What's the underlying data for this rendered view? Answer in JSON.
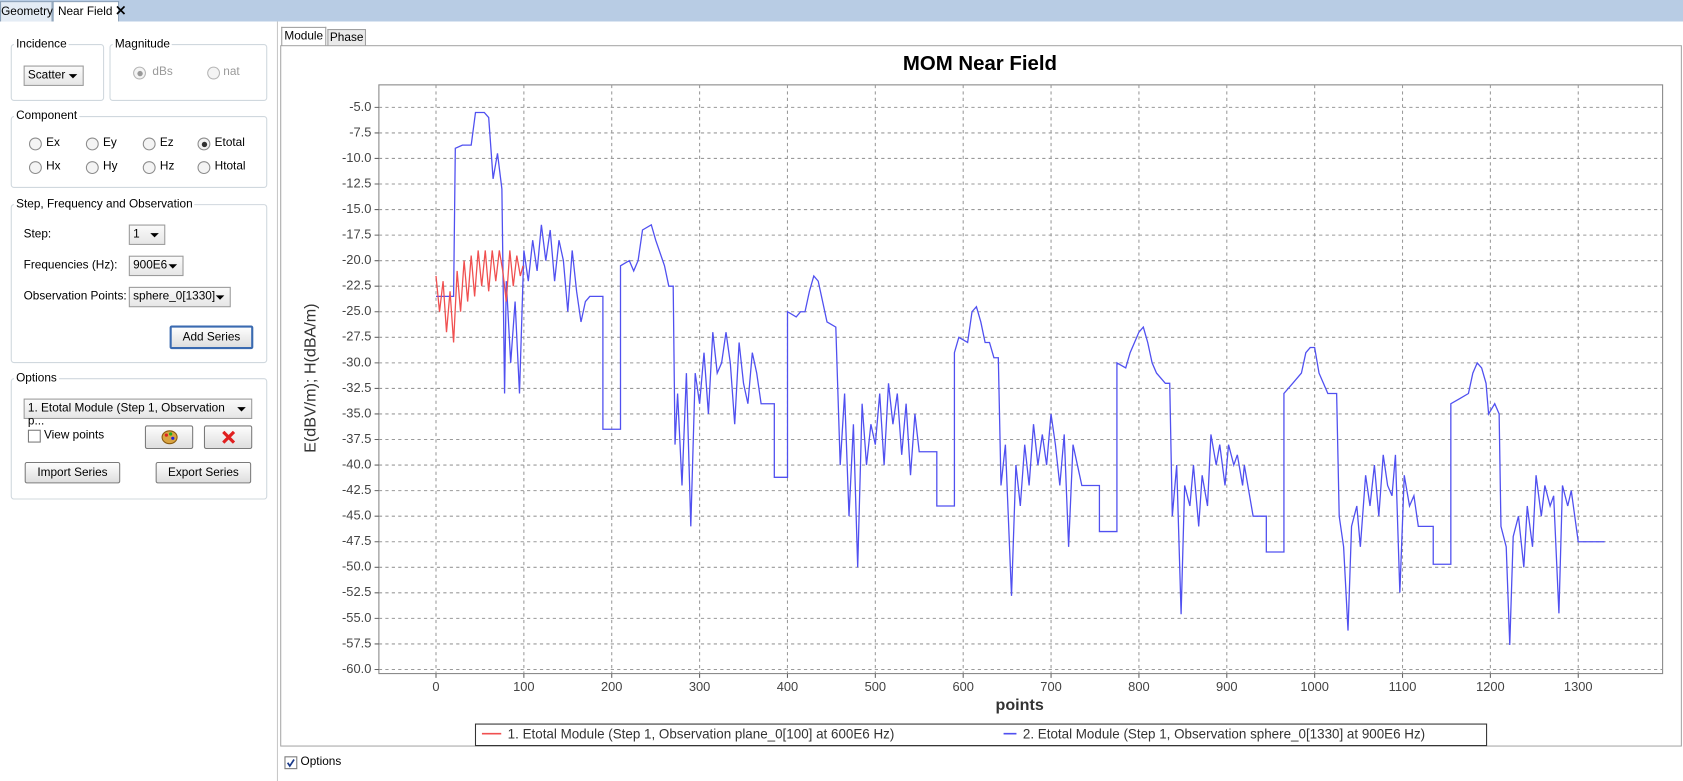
{
  "tabs": [
    "Geometry",
    "Near Field"
  ],
  "incidence": {
    "title": "Incidence",
    "value": "Scatter"
  },
  "magnitude": {
    "title": "Magnitude",
    "options": [
      "dBs",
      "nat"
    ]
  },
  "component": {
    "title": "Component",
    "options": [
      "Ex",
      "Ey",
      "Ez",
      "Etotal",
      "Hx",
      "Hy",
      "Hz",
      "Htotal"
    ]
  },
  "step_group": {
    "title": "Step, Frequency and Observation",
    "step_label": "Step:",
    "step_value": "1",
    "freq_label": "Frequencies (Hz):",
    "freq_value": "900E6",
    "obs_label": "Observation Points:",
    "obs_value": "sphere_0[1330]",
    "add_button": "Add Series"
  },
  "options": {
    "title": "Options",
    "series_select": "1. Etotal Module (Step 1, Observation p...",
    "view_points": "View points",
    "import_button": "Import Series",
    "export_button": "Export Series"
  },
  "chart_tabs": [
    "Module",
    "Phase"
  ],
  "bottom_checkbox": "Options",
  "chart_data": {
    "type": "line",
    "title": "MOM Near Field",
    "x_label": "points",
    "y_label": "E(dBV/m); H(dBA/m)",
    "xlim": [
      -65,
      1396
    ],
    "ylim": [
      -60.4,
      -2.8
    ],
    "xticks": [
      0,
      100,
      200,
      300,
      400,
      500,
      600,
      700,
      800,
      900,
      1000,
      1100,
      1200,
      1300
    ],
    "yticks": [
      {
        "value": -5,
        "label": "-5.0"
      },
      -7.5,
      {
        "value": -10,
        "label": "-10.0"
      },
      -12.5,
      {
        "value": -15,
        "label": "-15.0"
      },
      -17.5,
      {
        "value": -20,
        "label": "-20.0"
      },
      -22.5,
      {
        "value": -25,
        "label": "-25.0"
      },
      -27.5,
      {
        "value": -30,
        "label": "-30.0"
      },
      -32.5,
      {
        "value": -35,
        "label": "-35.0"
      },
      -37.5,
      {
        "value": -40,
        "label": "-40.0"
      },
      -42.5,
      {
        "value": -45,
        "label": "-45.0"
      },
      -47.5,
      {
        "value": -50,
        "label": "-50.0"
      },
      -52.5,
      {
        "value": -55,
        "label": "-55.0"
      },
      -57.5,
      {
        "value": -60,
        "label": "-60.0"
      }
    ],
    "grid": true,
    "legend": "bottom",
    "series": [
      {
        "name": "1. Etotal Module (Step 1, Observation plane_0[100] at 600E6 Hz)",
        "color": "#f05050",
        "x": [
          0,
          4,
          8,
          12,
          16,
          20,
          24,
          28,
          32,
          36,
          40,
          44,
          48,
          52,
          56,
          60,
          64,
          68,
          72,
          76,
          80,
          84,
          88,
          92,
          96,
          99
        ],
        "values": [
          -21.5,
          -25,
          -22,
          -27,
          -23,
          -28,
          -21,
          -25,
          -20,
          -24,
          -19.5,
          -23.5,
          -19,
          -22.5,
          -19,
          -23,
          -19,
          -22,
          -19,
          -21,
          -24,
          -19,
          -22.5,
          -19.5,
          -21.5,
          -20.5
        ]
      },
      {
        "name": "2. Etotal Module (Step 1, Observation sphere_0[1330] at 900E6 Hz)",
        "color": "#5050f0",
        "x": [
          0,
          20,
          22,
          30,
          40,
          45,
          55,
          60,
          65,
          70,
          75,
          78,
          80,
          85,
          90,
          95,
          100,
          105,
          110,
          115,
          120,
          125,
          130,
          135,
          140,
          145,
          150,
          155,
          160,
          165,
          170,
          175,
          190,
          190,
          210,
          210,
          220,
          225,
          230,
          235,
          245,
          250,
          260,
          265,
          270,
          272,
          275,
          280,
          285,
          290,
          295,
          300,
          305,
          310,
          315,
          320,
          325,
          330,
          335,
          340,
          345,
          350,
          355,
          360,
          365,
          370,
          385,
          385,
          400,
          400,
          410,
          415,
          420,
          425,
          430,
          435,
          440,
          445,
          455,
          460,
          465,
          470,
          475,
          480,
          485,
          490,
          495,
          500,
          505,
          510,
          515,
          520,
          525,
          530,
          535,
          540,
          545,
          550,
          570,
          570,
          590,
          590,
          595,
          605,
          610,
          615,
          620,
          625,
          630,
          635,
          640,
          643,
          648,
          655,
          660,
          665,
          670,
          675,
          680,
          685,
          690,
          695,
          700,
          705,
          710,
          715,
          720,
          725,
          730,
          735,
          755,
          755,
          775,
          775,
          785,
          790,
          795,
          800,
          805,
          810,
          815,
          820,
          830,
          835,
          838,
          843,
          848,
          852,
          858,
          862,
          868,
          872,
          878,
          882,
          888,
          892,
          898,
          902,
          908,
          912,
          918,
          920,
          930,
          945,
          945,
          965,
          965,
          975,
          985,
          990,
          995,
          1000,
          1005,
          1010,
          1015,
          1025,
          1028,
          1033,
          1038,
          1042,
          1048,
          1052,
          1058,
          1063,
          1068,
          1073,
          1078,
          1083,
          1088,
          1092,
          1097,
          1102,
          1108,
          1113,
          1118,
          1135,
          1135,
          1155,
          1155,
          1165,
          1175,
          1180,
          1185,
          1190,
          1195,
          1198,
          1205,
          1210,
          1212,
          1218,
          1222,
          1226,
          1232,
          1238,
          1242,
          1248,
          1252,
          1258,
          1262,
          1268,
          1272,
          1278,
          1282,
          1288,
          1292,
          1300,
          1330
        ],
        "values": [
          -23.5,
          -23.5,
          -9,
          -8.7,
          -8.7,
          -5.5,
          -5.5,
          -6,
          -12,
          -9.5,
          -13,
          -33,
          -22,
          -30,
          -24,
          -33,
          -19,
          -22,
          -18,
          -21,
          -16.5,
          -20,
          -17,
          -22,
          -18,
          -20,
          -25,
          -19,
          -23,
          -26,
          -24,
          -23.5,
          -23.5,
          -36.5,
          -36.5,
          -20.5,
          -20,
          -21,
          -20,
          -17,
          -16.5,
          -18,
          -20.5,
          -22.5,
          -22.5,
          -38,
          -33,
          -42,
          -31,
          -46,
          -31,
          -34,
          -29,
          -35,
          -27,
          -31,
          -30,
          -27,
          -30,
          -36,
          -28,
          -32,
          -34,
          -29,
          -31,
          -34,
          -34,
          -41.2,
          -41.2,
          -25,
          -25.5,
          -25,
          -25,
          -23,
          -21.5,
          -22,
          -24,
          -26,
          -26.5,
          -40,
          -33,
          -45,
          -36,
          -50,
          -34,
          -40,
          -36,
          -38,
          -33,
          -40,
          -32,
          -36,
          -33,
          -39,
          -34,
          -41,
          -35,
          -38.7,
          -38.7,
          -44,
          -44,
          -29,
          -27.5,
          -28,
          -25,
          -24.5,
          -26,
          -28,
          -28,
          -29.5,
          -29.5,
          -42,
          -38,
          -52.8,
          -40,
          -44,
          -38,
          -42,
          -36,
          -40,
          -37,
          -40,
          -35,
          -38,
          -42,
          -37,
          -48,
          -38,
          -40,
          -42,
          -42,
          -46.5,
          -46.5,
          -30,
          -30.5,
          -29,
          -28,
          -27,
          -26.5,
          -28,
          -30,
          -31,
          -32,
          -32,
          -45,
          -40,
          -54.6,
          -42,
          -44,
          -40,
          -46,
          -41,
          -44,
          -37,
          -40,
          -38,
          -42,
          -38,
          -40,
          -39,
          -42,
          -40,
          -45,
          -45,
          -48.5,
          -48.5,
          -33,
          -32,
          -31,
          -29,
          -28.5,
          -28.5,
          -31,
          -32,
          -33,
          -33,
          -45,
          -48,
          -56.2,
          -46,
          -44,
          -48,
          -41,
          -44,
          -40,
          -45,
          -39,
          -42,
          -43,
          -39,
          -52.5,
          -41,
          -44,
          -43,
          -46,
          -46,
          -49.7,
          -49.7,
          -34,
          -33.5,
          -33,
          -31,
          -30,
          -30.5,
          -32,
          -35,
          -34,
          -35,
          -46,
          -48,
          -57.6,
          -47,
          -45,
          -50,
          -44,
          -48,
          -41,
          -45,
          -42,
          -44,
          -43,
          -54.5,
          -42,
          -44,
          -42.5,
          -47.5,
          -47.5
        ]
      }
    ]
  }
}
